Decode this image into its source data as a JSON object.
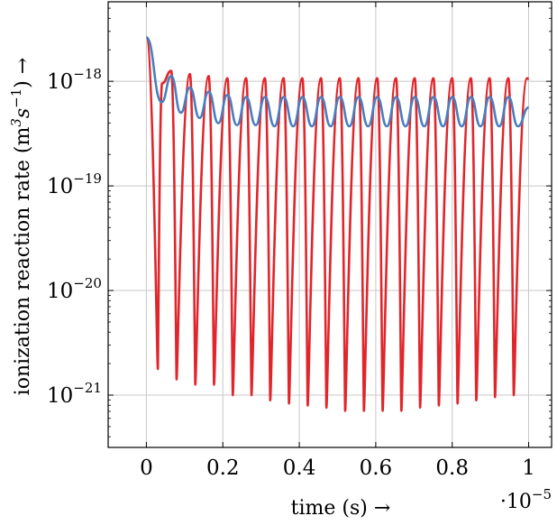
{
  "chart_data": {
    "type": "line",
    "xlabel": "time (s) →",
    "xscale_label": "·10",
    "xscale_exponent": "−5",
    "ylabel_main": "ionization reaction rate (m",
    "ylabel_sup1": "3",
    "ylabel_mid": "s",
    "ylabel_sup2": "−1",
    "ylabel_end": ") →",
    "yscale": "log",
    "xlim": [
      -0.1,
      1.06
    ],
    "ylim_exponent": [
      -21.5,
      -17.24
    ],
    "grid": true,
    "x_ticks": [
      0,
      0.2,
      0.4,
      0.6,
      0.8,
      1
    ],
    "x_tick_labels": [
      "0",
      "0.2",
      "0.4",
      "0.6",
      "0.8",
      "1"
    ],
    "y_ticks_exponent": [
      -21,
      -20,
      -19,
      -18
    ],
    "y_tick_base": "10",
    "y_tick_exponent_labels": [
      "−21",
      "−20",
      "−19",
      "−18"
    ],
    "series": [
      {
        "color": "#e0262b",
        "x_start": 0,
        "x_end": 1,
        "initial_log_value": -17.58,
        "period": 0.0491,
        "peaks_x": [
          0.041,
          0.065,
          0.114,
          0.163,
          0.212,
          0.261,
          0.31,
          0.359,
          0.408,
          0.457,
          0.506,
          0.555,
          0.604,
          0.653,
          0.702,
          0.751,
          0.8,
          0.849,
          0.898,
          0.947,
          0.996
        ],
        "peaks_log_value": [
          -18.02,
          -17.9,
          -17.93,
          -17.95,
          -17.97,
          -17.97,
          -17.97,
          -17.97,
          -17.97,
          -17.97,
          -17.97,
          -17.97,
          -17.97,
          -17.97,
          -17.97,
          -17.97,
          -17.97,
          -17.97,
          -17.97,
          -17.97,
          -17.97
        ],
        "troughs_x": [
          0.03,
          0.079,
          0.128,
          0.177,
          0.226,
          0.275,
          0.324,
          0.373,
          0.422,
          0.471,
          0.52,
          0.569,
          0.618,
          0.667,
          0.716,
          0.765,
          0.814,
          0.863,
          0.912,
          0.961
        ],
        "troughs_log_value": [
          -20.75,
          -20.85,
          -20.9,
          -20.9,
          -21.0,
          -21.0,
          -21.05,
          -21.08,
          -21.1,
          -21.12,
          -21.15,
          -21.15,
          -21.15,
          -21.15,
          -21.12,
          -21.1,
          -21.08,
          -21.05,
          -21.02,
          -21.0
        ],
        "end_log_value": -17.98
      },
      {
        "color": "#4a7ebf",
        "x_start": 0,
        "x_end": 1,
        "initial_log_value": -17.58,
        "period": 0.0491,
        "peaks_x": [
          0.065,
          0.114,
          0.163,
          0.212,
          0.261,
          0.31,
          0.359,
          0.408,
          0.457,
          0.506,
          0.555,
          0.604,
          0.653,
          0.702,
          0.751,
          0.8,
          0.849,
          0.898,
          0.947
        ],
        "peaks_log_value": [
          -17.95,
          -18.06,
          -18.1,
          -18.13,
          -18.15,
          -18.15,
          -18.15,
          -18.15,
          -18.15,
          -18.15,
          -18.15,
          -18.15,
          -18.15,
          -18.15,
          -18.15,
          -18.15,
          -18.15,
          -18.15,
          -18.15
        ],
        "troughs_x": [
          0.04,
          0.09,
          0.139,
          0.188,
          0.237,
          0.286,
          0.335,
          0.384,
          0.433,
          0.482,
          0.531,
          0.58,
          0.629,
          0.678,
          0.727,
          0.776,
          0.825,
          0.874,
          0.923,
          0.972
        ],
        "troughs_log_value": [
          -18.2,
          -18.3,
          -18.35,
          -18.4,
          -18.42,
          -18.42,
          -18.43,
          -18.43,
          -18.43,
          -18.43,
          -18.43,
          -18.43,
          -18.43,
          -18.43,
          -18.43,
          -18.43,
          -18.43,
          -18.43,
          -18.43,
          -18.43
        ],
        "end_log_value": -18.25
      }
    ]
  }
}
